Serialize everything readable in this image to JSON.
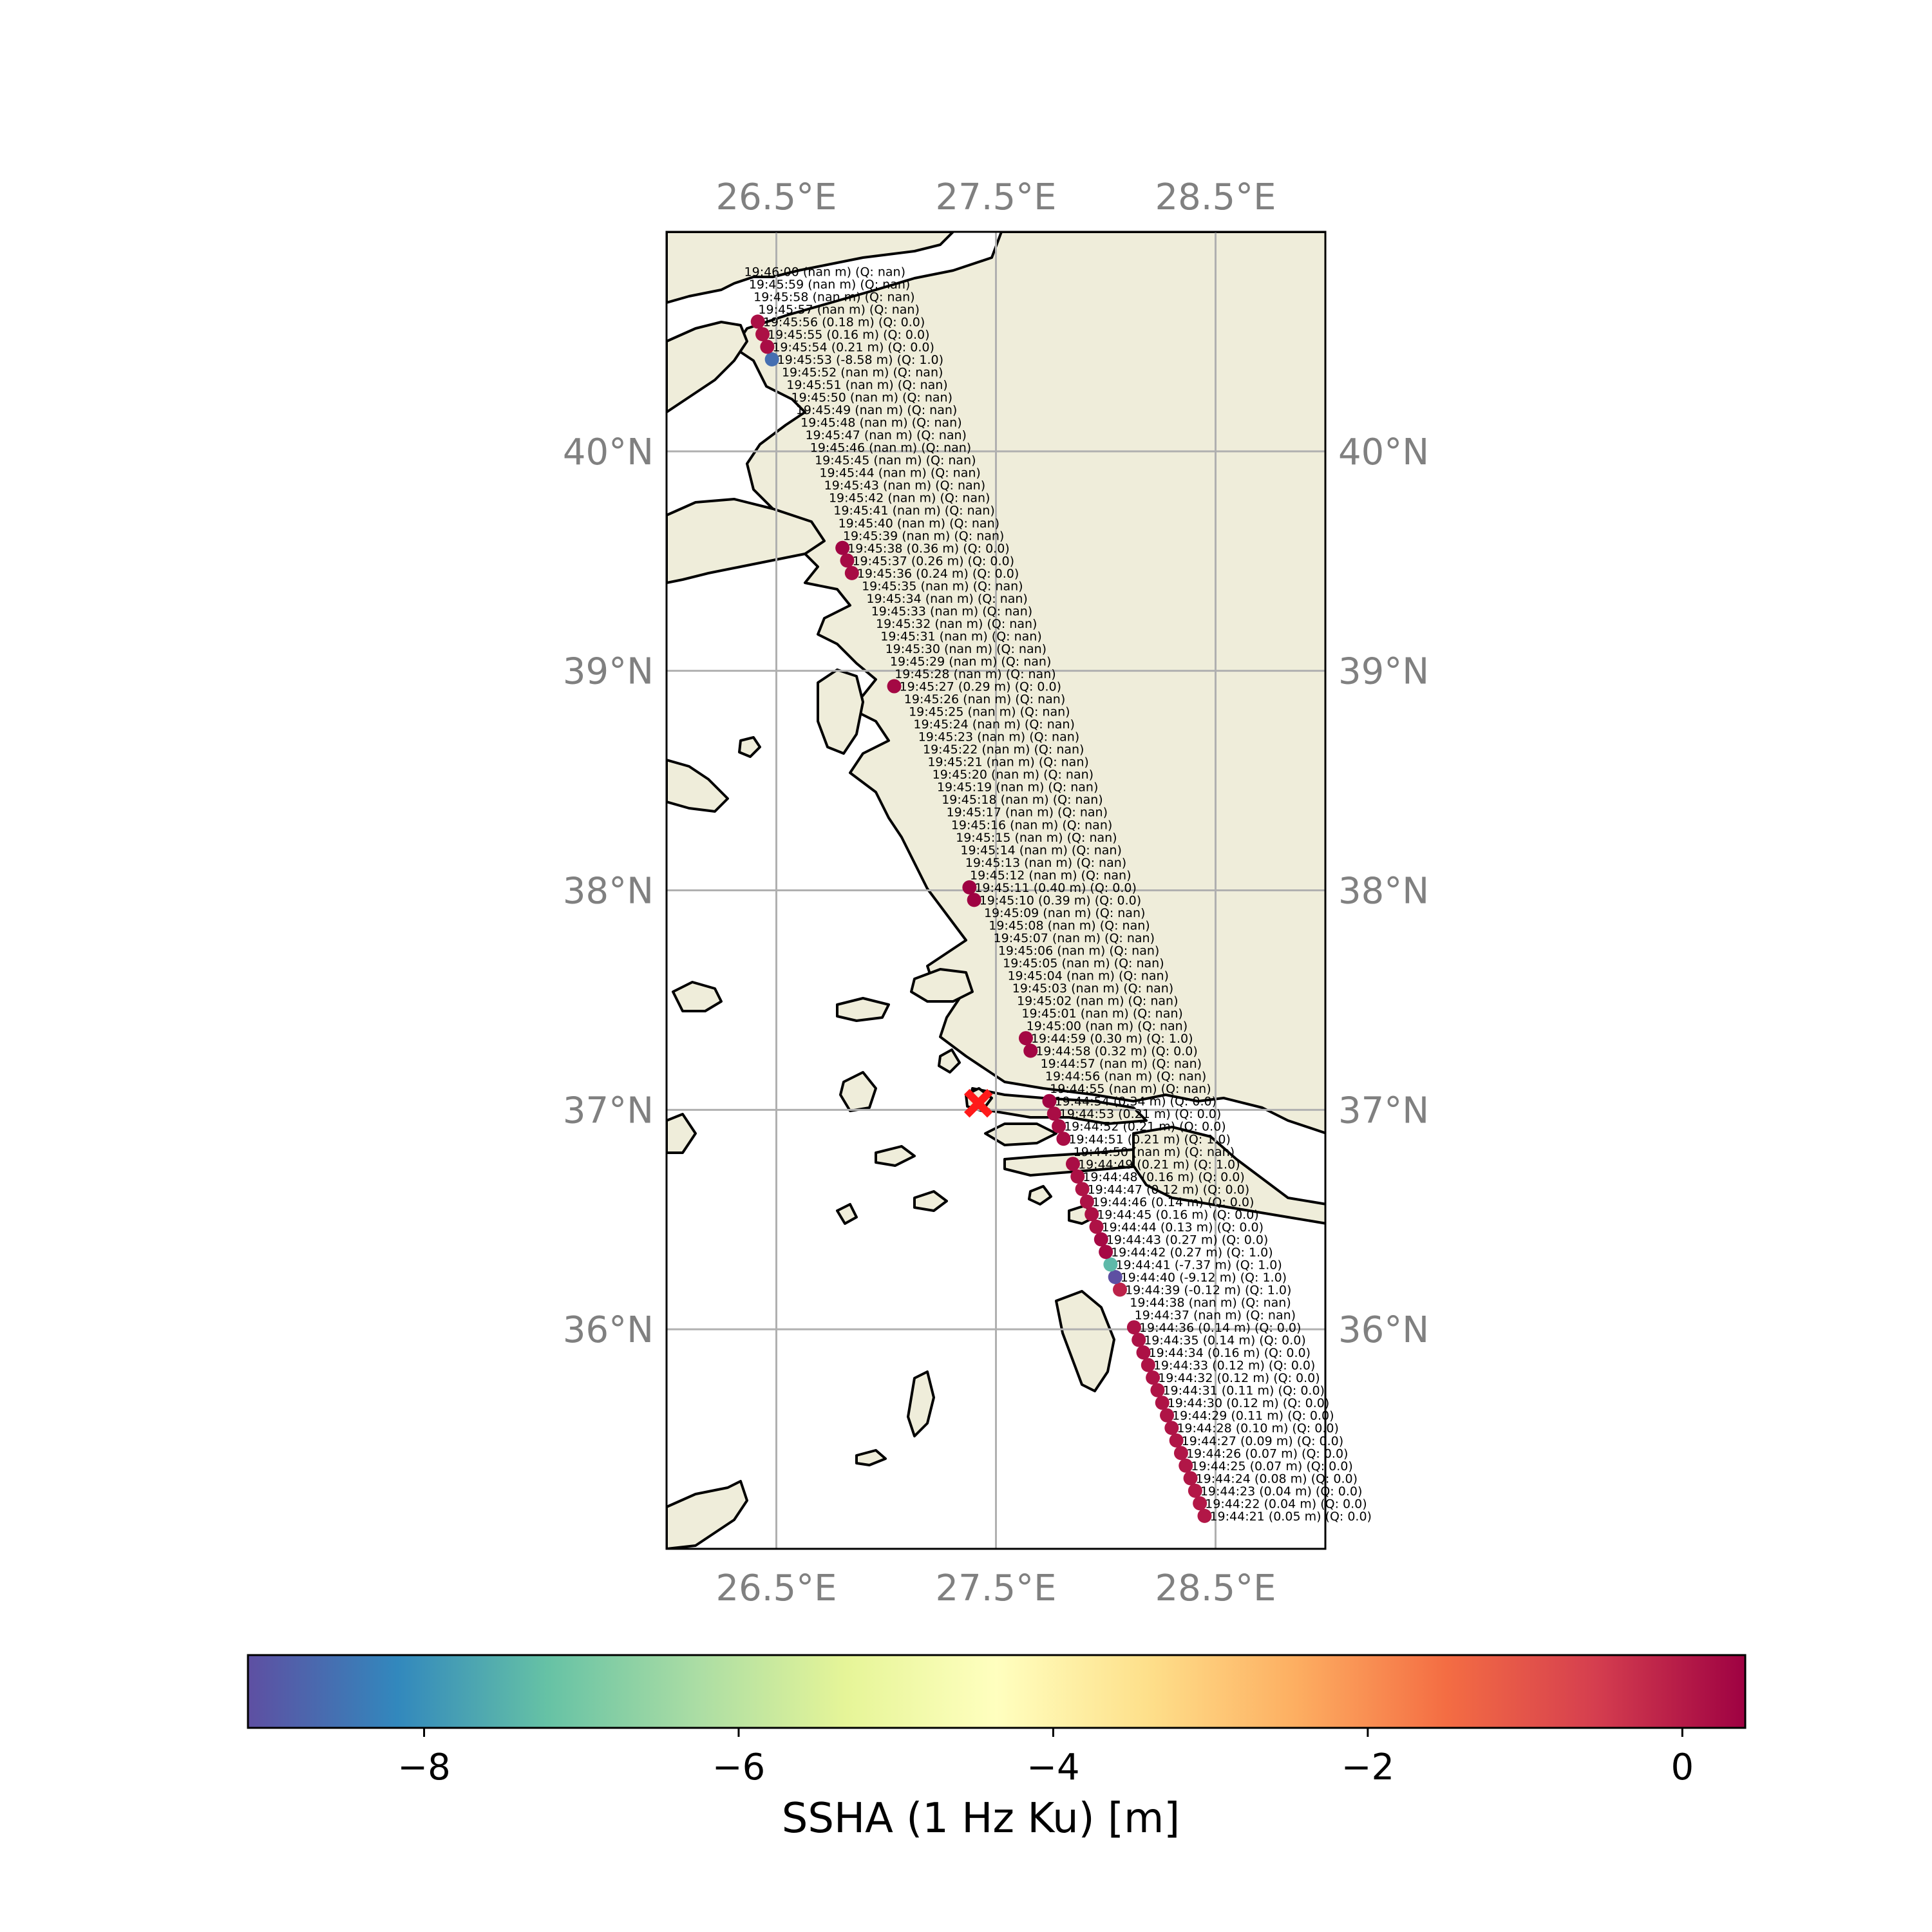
{
  "map": {
    "extent": {
      "lon_min": 26.0,
      "lon_max": 29.0,
      "lat_min": 35.0,
      "lat_max": 41.0
    },
    "lon_ticks": [
      {
        "value": 26.5,
        "label": "26.5°E"
      },
      {
        "value": 27.5,
        "label": "27.5°E"
      },
      {
        "value": 28.5,
        "label": "28.5°E"
      }
    ],
    "lat_ticks": [
      {
        "value": 40,
        "label": "40°N"
      },
      {
        "value": 39,
        "label": "39°N"
      },
      {
        "value": 38,
        "label": "38°N"
      },
      {
        "value": 37,
        "label": "37°N"
      },
      {
        "value": 36,
        "label": "36°N"
      }
    ],
    "gridlines": true,
    "land_color": "#efedda",
    "sea_color": "#ffffff",
    "marker": {
      "lon": 27.42,
      "lat": 37.03,
      "symbol": "X",
      "color": "#ff1a1a"
    }
  },
  "colorbar": {
    "label": "SSHA (1 Hz Ku) [m]",
    "min": -9.12,
    "max": 0.4,
    "ticks": [
      {
        "value": -8,
        "label": "−8"
      },
      {
        "value": -6,
        "label": "−6"
      },
      {
        "value": -4,
        "label": "−4"
      },
      {
        "value": -2,
        "label": "−2"
      },
      {
        "value": 0,
        "label": "0"
      }
    ],
    "colormap": "Spectral_r",
    "stops": [
      "#5e4fa2",
      "#3288bd",
      "#66c2a5",
      "#abdda4",
      "#e6f598",
      "#ffffbf",
      "#fee08b",
      "#fdae61",
      "#f46d43",
      "#d53e4f",
      "#9e0142"
    ]
  },
  "track": {
    "start": {
      "time_s": 21,
      "lon": 28.45,
      "lat": 35.15
    },
    "end": {
      "time_s": 120,
      "lon": 26.33,
      "lat": 40.82
    },
    "points": [
      {
        "label": "19:44:21 (0.05 m) (Q: 0.0)",
        "value": 0.05
      },
      {
        "label": "19:44:22 (0.04 m) (Q: 0.0)",
        "value": 0.04
      },
      {
        "label": "19:44:23 (0.04 m) (Q: 0.0)",
        "value": 0.04
      },
      {
        "label": "19:44:24 (0.08 m) (Q: 0.0)",
        "value": 0.08
      },
      {
        "label": "19:44:25 (0.07 m) (Q: 0.0)",
        "value": 0.07
      },
      {
        "label": "19:44:26 (0.07 m) (Q: 0.0)",
        "value": 0.07
      },
      {
        "label": "19:44:27 (0.09 m) (Q: 0.0)",
        "value": 0.09
      },
      {
        "label": "19:44:28 (0.10 m) (Q: 0.0)",
        "value": 0.1
      },
      {
        "label": "19:44:29 (0.11 m) (Q: 0.0)",
        "value": 0.11
      },
      {
        "label": "19:44:30 (0.12 m) (Q: 0.0)",
        "value": 0.12
      },
      {
        "label": "19:44:31 (0.11 m) (Q: 0.0)",
        "value": 0.11
      },
      {
        "label": "19:44:32 (0.12 m) (Q: 0.0)",
        "value": 0.12
      },
      {
        "label": "19:44:33 (0.12 m) (Q: 0.0)",
        "value": 0.12
      },
      {
        "label": "19:44:34 (0.16 m) (Q: 0.0)",
        "value": 0.16
      },
      {
        "label": "19:44:35 (0.14 m) (Q: 0.0)",
        "value": 0.14
      },
      {
        "label": "19:44:36 (0.14 m) (Q: 0.0)",
        "value": 0.14
      },
      {
        "label": "19:44:37 (nan m) (Q: nan)",
        "value": null
      },
      {
        "label": "19:44:38 (nan m) (Q: nan)",
        "value": null
      },
      {
        "label": "19:44:39 (-0.12 m) (Q: 1.0)",
        "value": -0.12
      },
      {
        "label": "19:44:40 (-9.12 m) (Q: 1.0)",
        "value": -9.12
      },
      {
        "label": "19:44:41 (-7.37 m) (Q: 1.0)",
        "value": -7.37
      },
      {
        "label": "19:44:42 (0.27 m) (Q: 1.0)",
        "value": 0.27
      },
      {
        "label": "19:44:43 (0.27 m) (Q: 0.0)",
        "value": 0.27
      },
      {
        "label": "19:44:44 (0.13 m) (Q: 0.0)",
        "value": 0.13
      },
      {
        "label": "19:44:45 (0.16 m) (Q: 0.0)",
        "value": 0.16
      },
      {
        "label": "19:44:46 (0.14 m) (Q: 0.0)",
        "value": 0.14
      },
      {
        "label": "19:44:47 (0.12 m) (Q: 0.0)",
        "value": 0.12
      },
      {
        "label": "19:44:48 (0.16 m) (Q: 0.0)",
        "value": 0.16
      },
      {
        "label": "19:44:49 (0.21 m) (Q: 1.0)",
        "value": 0.21
      },
      {
        "label": "19:44:50 (nan m) (Q: nan)",
        "value": null
      },
      {
        "label": "19:44:51 (0.21 m) (Q: 1.0)",
        "value": 0.21
      },
      {
        "label": "19:44:52 (0.21 m) (Q: 0.0)",
        "value": 0.21
      },
      {
        "label": "19:44:53 (0.21 m) (Q: 0.0)",
        "value": 0.21
      },
      {
        "label": "19:44:54 (0.34 m) (Q: 0.0)",
        "value": 0.34
      },
      {
        "label": "19:44:55 (nan m) (Q: nan)",
        "value": null
      },
      {
        "label": "19:44:56 (nan m) (Q: nan)",
        "value": null
      },
      {
        "label": "19:44:57 (nan m) (Q: nan)",
        "value": null
      },
      {
        "label": "19:44:58 (0.32 m) (Q: 0.0)",
        "value": 0.32
      },
      {
        "label": "19:44:59 (0.30 m) (Q: 1.0)",
        "value": 0.3
      },
      {
        "label": "19:45:00 (nan m) (Q: nan)",
        "value": null
      },
      {
        "label": "19:45:01 (nan m) (Q: nan)",
        "value": null
      },
      {
        "label": "19:45:02 (nan m) (Q: nan)",
        "value": null
      },
      {
        "label": "19:45:03 (nan m) (Q: nan)",
        "value": null
      },
      {
        "label": "19:45:04 (nan m) (Q: nan)",
        "value": null
      },
      {
        "label": "19:45:05 (nan m) (Q: nan)",
        "value": null
      },
      {
        "label": "19:45:06 (nan m) (Q: nan)",
        "value": null
      },
      {
        "label": "19:45:07 (nan m) (Q: nan)",
        "value": null
      },
      {
        "label": "19:45:08 (nan m) (Q: nan)",
        "value": null
      },
      {
        "label": "19:45:09 (nan m) (Q: nan)",
        "value": null
      },
      {
        "label": "19:45:10 (0.39 m) (Q: 0.0)",
        "value": 0.39
      },
      {
        "label": "19:45:11 (0.40 m) (Q: 0.0)",
        "value": 0.4
      },
      {
        "label": "19:45:12 (nan m) (Q: nan)",
        "value": null
      },
      {
        "label": "19:45:13 (nan m) (Q: nan)",
        "value": null
      },
      {
        "label": "19:45:14 (nan m) (Q: nan)",
        "value": null
      },
      {
        "label": "19:45:15 (nan m) (Q: nan)",
        "value": null
      },
      {
        "label": "19:45:16 (nan m) (Q: nan)",
        "value": null
      },
      {
        "label": "19:45:17 (nan m) (Q: nan)",
        "value": null
      },
      {
        "label": "19:45:18 (nan m) (Q: nan)",
        "value": null
      },
      {
        "label": "19:45:19 (nan m) (Q: nan)",
        "value": null
      },
      {
        "label": "19:45:20 (nan m) (Q: nan)",
        "value": null
      },
      {
        "label": "19:45:21 (nan m) (Q: nan)",
        "value": null
      },
      {
        "label": "19:45:22 (nan m) (Q: nan)",
        "value": null
      },
      {
        "label": "19:45:23 (nan m) (Q: nan)",
        "value": null
      },
      {
        "label": "19:45:24 (nan m) (Q: nan)",
        "value": null
      },
      {
        "label": "19:45:25 (nan m) (Q: nan)",
        "value": null
      },
      {
        "label": "19:45:26 (nan m) (Q: nan)",
        "value": null
      },
      {
        "label": "19:45:27 (0.29 m) (Q: 0.0)",
        "value": 0.29
      },
      {
        "label": "19:45:28 (nan m) (Q: nan)",
        "value": null
      },
      {
        "label": "19:45:29 (nan m) (Q: nan)",
        "value": null
      },
      {
        "label": "19:45:30 (nan m) (Q: nan)",
        "value": null
      },
      {
        "label": "19:45:31 (nan m) (Q: nan)",
        "value": null
      },
      {
        "label": "19:45:32 (nan m) (Q: nan)",
        "value": null
      },
      {
        "label": "19:45:33 (nan m) (Q: nan)",
        "value": null
      },
      {
        "label": "19:45:34 (nan m) (Q: nan)",
        "value": null
      },
      {
        "label": "19:45:35 (nan m) (Q: nan)",
        "value": null
      },
      {
        "label": "19:45:36 (0.24 m) (Q: 0.0)",
        "value": 0.24
      },
      {
        "label": "19:45:37 (0.26 m) (Q: 0.0)",
        "value": 0.26
      },
      {
        "label": "19:45:38 (0.36 m) (Q: 0.0)",
        "value": 0.36
      },
      {
        "label": "19:45:39 (nan m) (Q: nan)",
        "value": null
      },
      {
        "label": "19:45:40 (nan m) (Q: nan)",
        "value": null
      },
      {
        "label": "19:45:41 (nan m) (Q: nan)",
        "value": null
      },
      {
        "label": "19:45:42 (nan m) (Q: nan)",
        "value": null
      },
      {
        "label": "19:45:43 (nan m) (Q: nan)",
        "value": null
      },
      {
        "label": "19:45:44 (nan m) (Q: nan)",
        "value": null
      },
      {
        "label": "19:45:45 (nan m) (Q: nan)",
        "value": null
      },
      {
        "label": "19:45:46 (nan m) (Q: nan)",
        "value": null
      },
      {
        "label": "19:45:47 (nan m) (Q: nan)",
        "value": null
      },
      {
        "label": "19:45:48 (nan m) (Q: nan)",
        "value": null
      },
      {
        "label": "19:45:49 (nan m) (Q: nan)",
        "value": null
      },
      {
        "label": "19:45:50 (nan m) (Q: nan)",
        "value": null
      },
      {
        "label": "19:45:51 (nan m) (Q: nan)",
        "value": null
      },
      {
        "label": "19:45:52 (nan m) (Q: nan)",
        "value": null
      },
      {
        "label": "19:45:53 (-8.58 m) (Q: 1.0)",
        "value": -8.58
      },
      {
        "label": "19:45:54 (0.21 m) (Q: 0.0)",
        "value": 0.21
      },
      {
        "label": "19:45:55 (0.16 m) (Q: 0.0)",
        "value": 0.16
      },
      {
        "label": "19:45:56 (0.18 m) (Q: 0.0)",
        "value": 0.18
      },
      {
        "label": "19:45:57 (nan m) (Q: nan)",
        "value": null
      },
      {
        "label": "19:45:58 (nan m) (Q: nan)",
        "value": null
      },
      {
        "label": "19:45:59 (nan m) (Q: nan)",
        "value": null
      },
      {
        "label": "19:46:00 (nan m) (Q: nan)",
        "value": null
      }
    ]
  }
}
